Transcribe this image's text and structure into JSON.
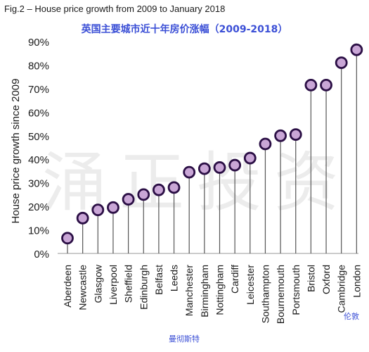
{
  "figure": {
    "title": "Fig.2 – House price growth from 2009 to January 2018",
    "subtitle_cn": "英国主要城市近十年房价涨幅（2009-2018）",
    "watermark": "涌正投资",
    "annotations": {
      "london_cn": "伦敦",
      "manchester_cn": "曼彻斯特"
    }
  },
  "colors": {
    "marker_fill": "#c9a6d6",
    "marker_edge": "#2b0f45",
    "stem": "#555555",
    "cn_text": "#3b4fd6"
  },
  "chart_data": {
    "type": "scatter",
    "style": "lollipop",
    "title": "Fig.2 – House price growth from 2009 to January 2018",
    "ylabel": "House price growth since 2009",
    "xlabel": "",
    "ylim": [
      0,
      90
    ],
    "yticks": [
      "0%",
      "10%",
      "20%",
      "30%",
      "40%",
      "50%",
      "60%",
      "70%",
      "80%",
      "90%"
    ],
    "grid": false,
    "categories": [
      "Aberdeen",
      "Newcastle",
      "Glasgow",
      "Liverpool",
      "Sheffield",
      "Edinburgh",
      "Belfast",
      "Leeds",
      "Manchester",
      "Birmingham",
      "Nottingham",
      "Cardiff",
      "Leicester",
      "Southampton",
      "Bournemouth",
      "Portsmouth",
      "Bristol",
      "Oxford",
      "Cambridge",
      "London"
    ],
    "values": [
      6.5,
      15,
      18.5,
      19.5,
      23,
      25,
      27,
      28,
      34.5,
      36,
      36.5,
      37.5,
      40.5,
      46.5,
      50,
      50.5,
      71.5,
      71.5,
      81,
      86.5
    ]
  }
}
